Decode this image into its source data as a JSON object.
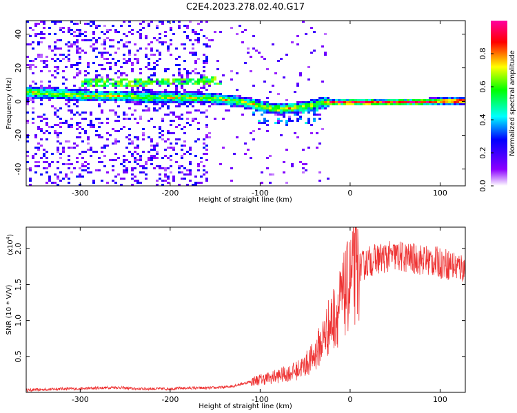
{
  "title": "C2E4.2023.278.02.40.G17",
  "chart_data": [
    {
      "type": "heatmap",
      "xlabel": "Height of straight line (km)",
      "ylabel": "Frequency (Hz)",
      "xlim": [
        -360,
        128
      ],
      "ylim": [
        -50,
        48
      ],
      "x_ticks": [
        -300,
        -200,
        -100,
        0,
        100
      ],
      "x_tick_labels": [
        "-300",
        "-200",
        "-100",
        "0",
        "100"
      ],
      "y_ticks": [
        -40,
        -20,
        0,
        20,
        40
      ],
      "y_tick_labels": [
        "-40",
        "-20",
        "0",
        "20",
        "40"
      ],
      "colorbar": {
        "label": "Normalized spectral amplitude",
        "range": [
          0,
          1
        ],
        "ticks": [
          0.0,
          0.2,
          0.4,
          0.6,
          0.8
        ],
        "tick_labels": [
          "0.0",
          "0.2",
          "0.4",
          "0.6",
          "0.8"
        ],
        "colormap": [
          "#ffffff",
          "#8b00ff",
          "#0000ff",
          "#00ffff",
          "#00ff00",
          "#ffff00",
          "#ff0000",
          "#ff00a0"
        ]
      },
      "ridge": [
        {
          "x": -355,
          "freq": 6
        },
        {
          "x": -320,
          "freq": 5
        },
        {
          "x": -290,
          "freq": 4
        },
        {
          "x": -260,
          "freq": 4
        },
        {
          "x": -230,
          "freq": 3
        },
        {
          "x": -200,
          "freq": 3
        },
        {
          "x": -170,
          "freq": 3
        },
        {
          "x": -150,
          "freq": 2
        },
        {
          "x": -130,
          "freq": 1
        },
        {
          "x": -110,
          "freq": -1
        },
        {
          "x": -95,
          "freq": -3
        },
        {
          "x": -80,
          "freq": -4
        },
        {
          "x": -60,
          "freq": -3
        },
        {
          "x": -45,
          "freq": -2
        },
        {
          "x": -30,
          "freq": 0
        },
        {
          "x": 0,
          "freq": 0
        },
        {
          "x": 50,
          "freq": 0
        },
        {
          "x": 128,
          "freq": 1
        }
      ],
      "secondary_ridge": [
        {
          "x": -300,
          "freq": 12
        },
        {
          "x": -255,
          "freq": 12
        },
        {
          "x": -225,
          "freq": 12
        },
        {
          "x": -160,
          "freq": 13
        },
        {
          "x": -148,
          "freq": 13
        }
      ]
    },
    {
      "type": "line",
      "xlabel": "Height of straight line (km)",
      "ylabel": "SNR (10 * V/V)",
      "y_multiplier": "(x10",
      "y_multiplier_exp": "4",
      "y_multiplier_close": ")",
      "xlim": [
        -360,
        128
      ],
      "ylim": [
        0,
        2.3
      ],
      "x_ticks": [
        -300,
        -200,
        -100,
        0,
        100
      ],
      "x_tick_labels": [
        "-300",
        "-200",
        "-100",
        "0",
        "100"
      ],
      "y_ticks": [
        0.5,
        1.0,
        1.5,
        2.0
      ],
      "y_tick_labels": [
        "0.5",
        "1.0",
        "1.5",
        "2.0"
      ],
      "color": "#ee3333",
      "series": [
        {
          "x": [
            -360,
            -340,
            -320,
            -300,
            -280,
            -260,
            -240,
            -220,
            -200,
            -180,
            -160,
            -140,
            -130,
            -120,
            -110,
            -100,
            -90,
            -80,
            -70,
            -60,
            -50,
            -40,
            -35,
            -30,
            -25,
            -20,
            -15,
            -10,
            -5,
            0,
            5,
            10,
            20,
            30,
            40,
            50,
            60,
            70,
            80,
            90,
            100,
            110,
            120,
            128
          ],
          "values": [
            0.03,
            0.04,
            0.05,
            0.05,
            0.06,
            0.07,
            0.05,
            0.05,
            0.05,
            0.06,
            0.06,
            0.07,
            0.09,
            0.12,
            0.15,
            0.18,
            0.2,
            0.23,
            0.26,
            0.3,
            0.38,
            0.5,
            0.62,
            0.75,
            0.88,
            1.0,
            1.1,
            1.25,
            1.4,
            1.55,
            1.65,
            1.72,
            1.82,
            1.86,
            1.88,
            1.9,
            1.88,
            1.86,
            1.85,
            1.83,
            1.8,
            1.78,
            1.75,
            1.72
          ]
        }
      ]
    }
  ]
}
